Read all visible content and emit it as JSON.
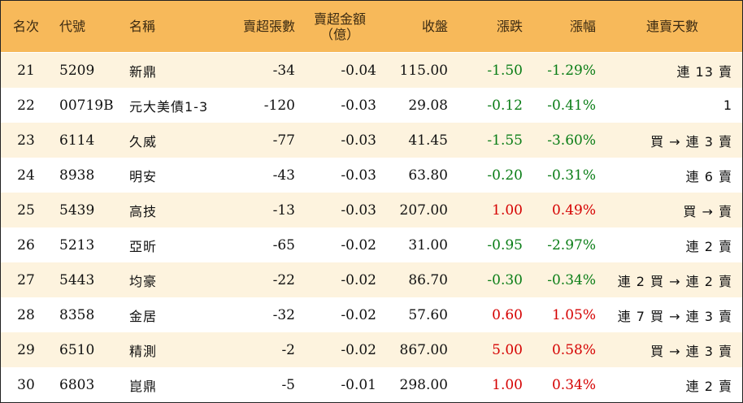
{
  "header": {
    "rank": "名次",
    "code": "代號",
    "name": "名稱",
    "net_sell_lots": "賣超張數",
    "net_sell_amount": "賣超金額",
    "net_sell_amount_unit": "（億）",
    "close": "收盤",
    "change": "漲跌",
    "change_pct": "漲幅",
    "streak": "連賣天數"
  },
  "rows": [
    {
      "rank": "21",
      "code": "5209",
      "name": "新鼎",
      "lots": "-34",
      "amount": "-0.04",
      "close": "115.00",
      "change": "-1.50",
      "pct": "-1.29%",
      "streak": "連 13 賣"
    },
    {
      "rank": "22",
      "code": "00719B",
      "name": "元大美債1-3",
      "lots": "-120",
      "amount": "-0.03",
      "close": "29.08",
      "change": "-0.12",
      "pct": "-0.41%",
      "streak": "1"
    },
    {
      "rank": "23",
      "code": "6114",
      "name": "久威",
      "lots": "-77",
      "amount": "-0.03",
      "close": "41.45",
      "change": "-1.55",
      "pct": "-3.60%",
      "streak": "買 → 連 3 賣"
    },
    {
      "rank": "24",
      "code": "8938",
      "name": "明安",
      "lots": "-43",
      "amount": "-0.03",
      "close": "63.80",
      "change": "-0.20",
      "pct": "-0.31%",
      "streak": "連 6 賣"
    },
    {
      "rank": "25",
      "code": "5439",
      "name": "高技",
      "lots": "-13",
      "amount": "-0.03",
      "close": "207.00",
      "change": "1.00",
      "pct": "0.49%",
      "streak": "買 → 賣"
    },
    {
      "rank": "26",
      "code": "5213",
      "name": "亞昕",
      "lots": "-65",
      "amount": "-0.02",
      "close": "31.00",
      "change": "-0.95",
      "pct": "-2.97%",
      "streak": "連 2 賣"
    },
    {
      "rank": "27",
      "code": "5443",
      "name": "均豪",
      "lots": "-22",
      "amount": "-0.02",
      "close": "86.70",
      "change": "-0.30",
      "pct": "-0.34%",
      "streak": "連 2 買 → 連 2 賣"
    },
    {
      "rank": "28",
      "code": "8358",
      "name": "金居",
      "lots": "-32",
      "amount": "-0.02",
      "close": "57.60",
      "change": "0.60",
      "pct": "1.05%",
      "streak": "連 7 買 → 連 3 賣"
    },
    {
      "rank": "29",
      "code": "6510",
      "name": "精測",
      "lots": "-2",
      "amount": "-0.02",
      "close": "867.00",
      "change": "5.00",
      "pct": "0.58%",
      "streak": "買 → 連 3 賣"
    },
    {
      "rank": "30",
      "code": "6803",
      "name": "崑鼎",
      "lots": "-5",
      "amount": "-0.01",
      "close": "298.00",
      "change": "1.00",
      "pct": "0.34%",
      "streak": "連 2 賣"
    }
  ],
  "colors": {
    "header_bg": "#f7b95a",
    "odd_row_bg": "#fdf3de",
    "up": "#d50000",
    "down": "#0a7d16"
  }
}
